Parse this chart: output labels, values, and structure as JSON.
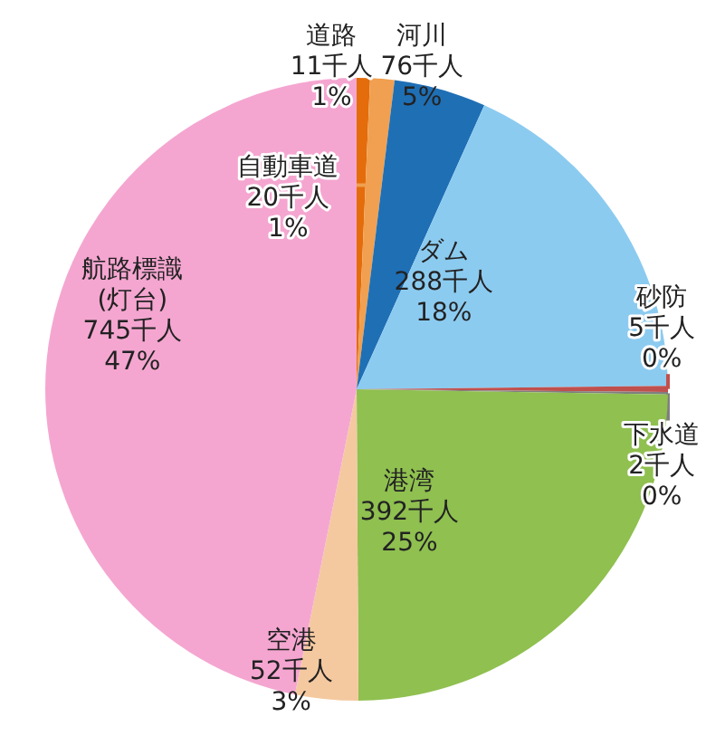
{
  "chart_data": {
    "type": "pie",
    "categories": [
      "道路",
      "自動車道",
      "河川",
      "ダム",
      "砂防",
      "下水道",
      "港湾",
      "空港",
      "航路標識\n(灯台)"
    ],
    "values": [
      11,
      20,
      76,
      288,
      5,
      2,
      392,
      52,
      745
    ],
    "value_labels": [
      "11千人\n1%",
      "20千人\n1%",
      "76千人\n5%",
      "288千人\n18%",
      "5千人\n0%",
      "2千人\n0%",
      "392千人\n25%",
      "52千人\n3%",
      "745千人\n47%"
    ],
    "colors": [
      "#e46c0a",
      "#f0a050",
      "#1f6fb5",
      "#8ccbf0",
      "#c0504d",
      "#7f7f7f",
      "#8fc050",
      "#f5c9a0",
      "#f4a6d0"
    ]
  }
}
